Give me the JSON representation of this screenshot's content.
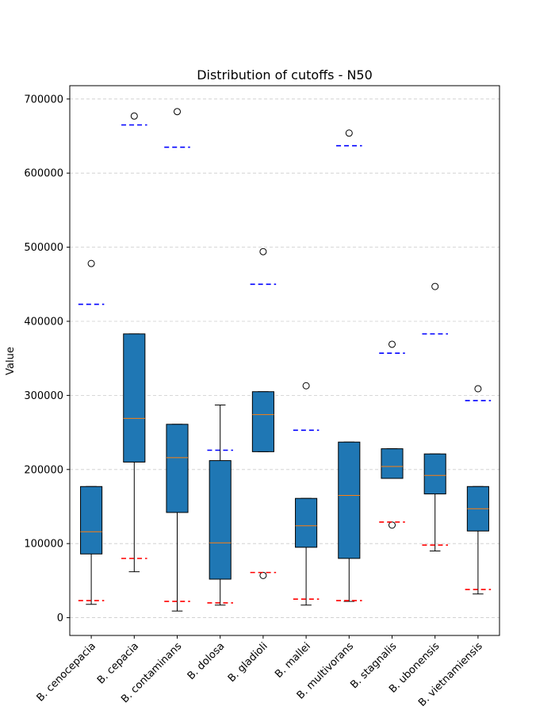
{
  "chart_data": {
    "type": "box",
    "title": "Distribution of cutoffs - N50",
    "xlabel": "",
    "ylabel": "Value",
    "ylim": [
      -24000,
      718000
    ],
    "yticks": [
      0,
      100000,
      200000,
      300000,
      400000,
      500000,
      600000,
      700000
    ],
    "ytick_labels": [
      "0",
      "100000",
      "200000",
      "300000",
      "400000",
      "500000",
      "600000",
      "700000"
    ],
    "grid": "horizontal dashed",
    "box_color": "#1f77b4",
    "median_color": "#ff7f0e",
    "lower_line_color": "#ff0000",
    "upper_line_color": "#0000ff",
    "categories": [
      "B. cenocepacia",
      "B. cepacia",
      "B. contaminans",
      "B. dolosa",
      "B. gladioli",
      "B. mallei",
      "B. multivorans",
      "B. stagnalis",
      "B. ubonensis",
      "B. vietnamiensis"
    ],
    "boxes": [
      {
        "whisker_low": 18000,
        "q1": 86000,
        "median": 116000,
        "q3": 177000,
        "whisker_high": 177000,
        "outliers": [
          478000
        ],
        "lower_line": 23000,
        "upper_line": 423000
      },
      {
        "whisker_low": 62000,
        "q1": 210000,
        "median": 269000,
        "q3": 383000,
        "whisker_high": 383000,
        "outliers": [
          677000
        ],
        "lower_line": 80000,
        "upper_line": 665000
      },
      {
        "whisker_low": 9000,
        "q1": 142000,
        "median": 216000,
        "q3": 261000,
        "whisker_high": 261000,
        "outliers": [
          683000
        ],
        "lower_line": 22000,
        "upper_line": 635000
      },
      {
        "whisker_low": 17000,
        "q1": 52000,
        "median": 101000,
        "q3": 212000,
        "whisker_high": 287000,
        "outliers": [],
        "lower_line": 20000,
        "upper_line": 226000
      },
      {
        "whisker_low": 224000,
        "q1": 224000,
        "median": 274000,
        "q3": 305000,
        "whisker_high": 305000,
        "outliers": [
          494000,
          57000
        ],
        "lower_line": 61000,
        "upper_line": 450000
      },
      {
        "whisker_low": 17000,
        "q1": 95000,
        "median": 124000,
        "q3": 161000,
        "whisker_high": 161000,
        "outliers": [
          313000
        ],
        "lower_line": 25000,
        "upper_line": 253000
      },
      {
        "whisker_low": 22000,
        "q1": 80000,
        "median": 165000,
        "q3": 237000,
        "whisker_high": 237000,
        "outliers": [
          654000
        ],
        "lower_line": 23000,
        "upper_line": 637000
      },
      {
        "whisker_low": 188000,
        "q1": 188000,
        "median": 204000,
        "q3": 228000,
        "whisker_high": 228000,
        "outliers": [
          369000,
          125000
        ],
        "lower_line": 129000,
        "upper_line": 357000
      },
      {
        "whisker_low": 90000,
        "q1": 167000,
        "median": 192000,
        "q3": 221000,
        "whisker_high": 221000,
        "outliers": [
          447000
        ],
        "lower_line": 98000,
        "upper_line": 383000
      },
      {
        "whisker_low": 32000,
        "q1": 117000,
        "median": 147000,
        "q3": 177000,
        "whisker_high": 177000,
        "outliers": [
          309000
        ],
        "lower_line": 38000,
        "upper_line": 293000
      }
    ]
  }
}
